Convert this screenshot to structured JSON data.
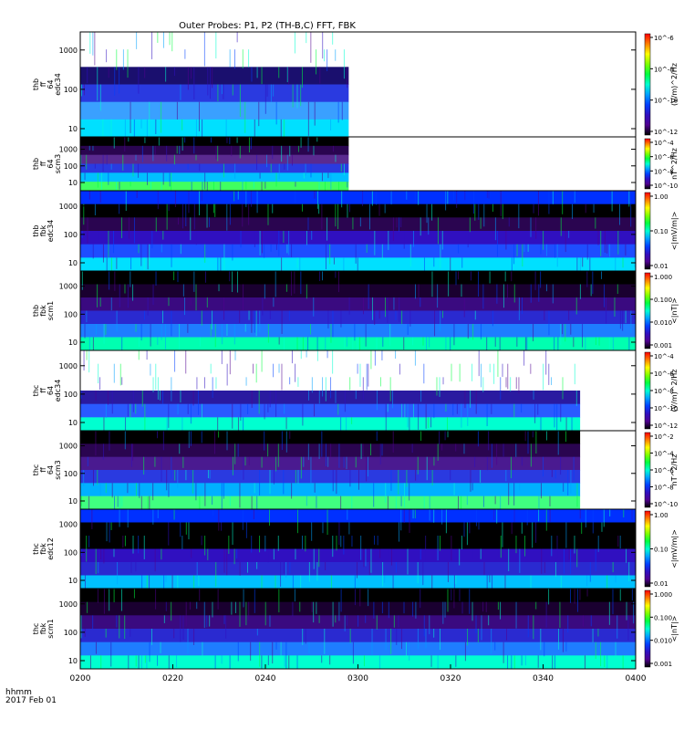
{
  "title": "Outer Probes: P1, P2 (TH-B,C) FFT, FBK",
  "footer": {
    "time_label": "hhmm",
    "date_label": "2017 Feb 01"
  },
  "x_ticks": [
    "0200",
    "0220",
    "0240",
    "0300",
    "0320",
    "0340",
    "0400"
  ],
  "chart_data": [
    {
      "type": "heatmap",
      "panel": "thb ff 64 edc34",
      "ylabel": [
        "thb",
        "ff",
        "64",
        "edc34"
      ],
      "ylog": true,
      "y_ticks": [
        "10",
        "100",
        "1000"
      ],
      "colorbar_label": "(V/m)^2/Hz",
      "colorbar_log": true,
      "colorbar_ticks": [
        "10^-6",
        "10^-8",
        "10^-10",
        "10^-12"
      ],
      "data_end": "0258"
    },
    {
      "type": "heatmap",
      "panel": "thb ff 64 scm3",
      "ylabel": [
        "thb",
        "ff",
        "64",
        "scm3"
      ],
      "ylog": true,
      "y_ticks": [
        "10",
        "100",
        "1000"
      ],
      "colorbar_label": "nT^2/Hz",
      "colorbar_log": true,
      "colorbar_ticks": [
        "10^-4",
        "10^-6",
        "10^-8",
        "10^-10"
      ],
      "data_end": "0258"
    },
    {
      "type": "heatmap",
      "panel": "thb fbk edc34",
      "ylabel": [
        "thb",
        "fbk",
        "edc34"
      ],
      "ylog": true,
      "y_ticks": [
        "10",
        "100",
        "1000"
      ],
      "colorbar_label": "<|mV/m|>",
      "colorbar_log": true,
      "colorbar_ticks": [
        "1.00",
        "0.10",
        "0.01"
      ],
      "data_end": "0400"
    },
    {
      "type": "heatmap",
      "panel": "thb fbk scm1",
      "ylabel": [
        "thb",
        "fbk",
        "scm1"
      ],
      "ylog": true,
      "y_ticks": [
        "10",
        "100",
        "1000"
      ],
      "colorbar_label": "<|nT|>",
      "colorbar_log": true,
      "colorbar_ticks": [
        "1.000",
        "0.100",
        "0.010",
        "0.001"
      ],
      "data_end": "0400"
    },
    {
      "type": "heatmap",
      "panel": "thc ff 64 edc34",
      "ylabel": [
        "thc",
        "ff",
        "64",
        "edc34"
      ],
      "ylog": true,
      "y_ticks": [
        "10",
        "100",
        "1000"
      ],
      "colorbar_label": "(V/m)^2/Hz",
      "colorbar_log": true,
      "colorbar_ticks": [
        "10^-4",
        "10^-6",
        "10^-8",
        "10^-10",
        "10^-12"
      ],
      "data_end": "0348"
    },
    {
      "type": "heatmap",
      "panel": "thc ff 64 scm3",
      "ylabel": [
        "thc",
        "ff",
        "64",
        "scm3"
      ],
      "ylog": true,
      "y_ticks": [
        "10",
        "100",
        "1000"
      ],
      "colorbar_label": "nT^2/Hz",
      "colorbar_log": true,
      "colorbar_ticks": [
        "10^-2",
        "10^-4",
        "10^-6",
        "10^-8",
        "10^-10"
      ],
      "data_end": "0348"
    },
    {
      "type": "heatmap",
      "panel": "thc fbk edc12",
      "ylabel": [
        "thc",
        "fbk",
        "edc12"
      ],
      "ylog": true,
      "y_ticks": [
        "10",
        "100",
        "1000"
      ],
      "colorbar_label": "<|mV/m|>",
      "colorbar_log": true,
      "colorbar_ticks": [
        "1.00",
        "0.10",
        "0.01"
      ],
      "data_end": "0400"
    },
    {
      "type": "heatmap",
      "panel": "thc fbk scm1",
      "ylabel": [
        "thc",
        "fbk",
        "scm1"
      ],
      "ylog": true,
      "y_ticks": [
        "10",
        "100",
        "1000"
      ],
      "colorbar_label": "<|nT|>",
      "colorbar_log": true,
      "colorbar_ticks": [
        "1.000",
        "0.100",
        "0.010",
        "0.001"
      ],
      "data_end": "0400"
    }
  ]
}
